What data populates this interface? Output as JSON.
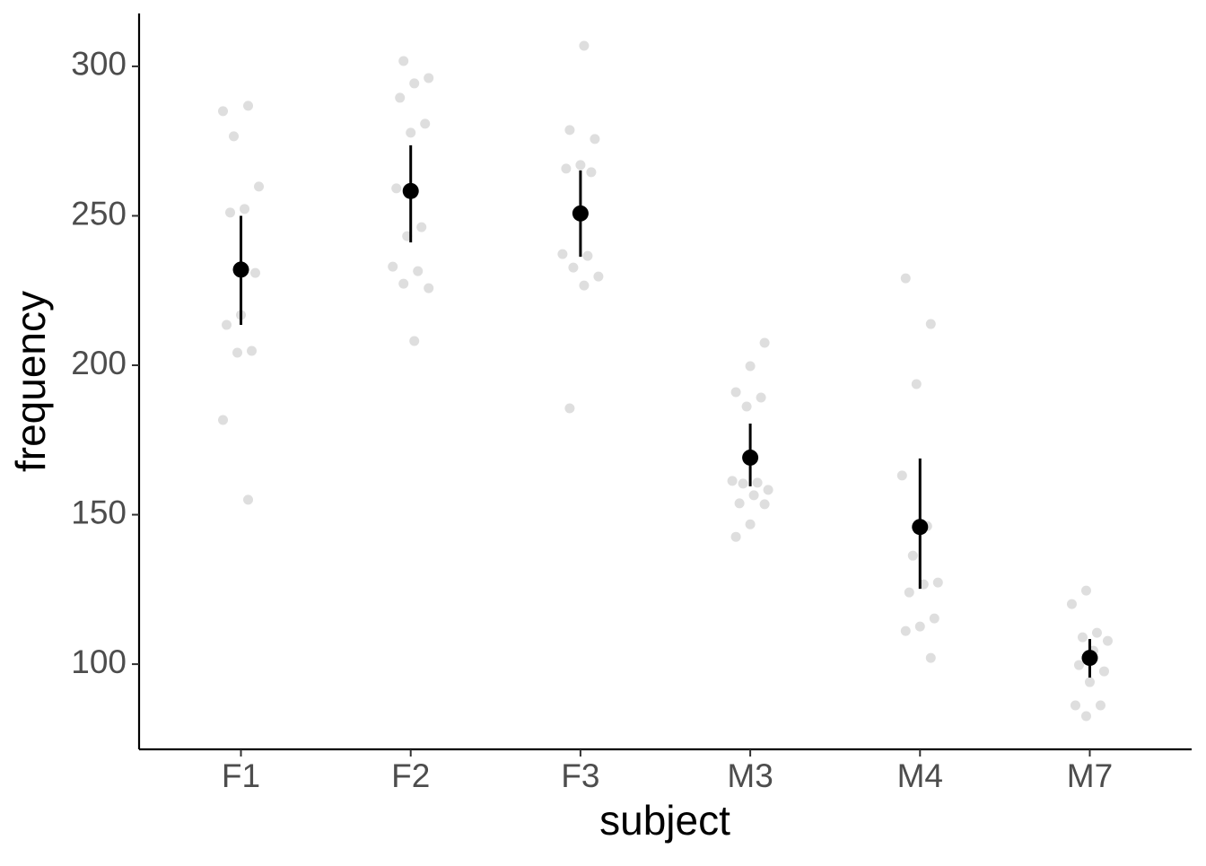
{
  "chart_data": {
    "type": "dot-errorbar",
    "x_label": "subject",
    "y_label": "frequency",
    "categories": [
      "F1",
      "F2",
      "F3",
      "M3",
      "M4",
      "M7"
    ],
    "points": [
      [
        285.0,
        286.8,
        276.6,
        259.8,
        252.3,
        251.1,
        230.9,
        216.8,
        213.5,
        204.8,
        204.2,
        181.7,
        155.0
      ],
      [
        301.8,
        296.1,
        294.3,
        289.5,
        280.8,
        277.8,
        259.2,
        246.2,
        243.2,
        233.0,
        231.5,
        227.3,
        225.8,
        208.1
      ],
      [
        306.9,
        278.7,
        275.7,
        267.0,
        265.8,
        264.6,
        251.1,
        237.2,
        236.6,
        232.7,
        229.7,
        226.7,
        185.6
      ],
      [
        207.5,
        199.7,
        191.0,
        189.2,
        186.2,
        161.3,
        160.7,
        160.4,
        158.3,
        156.5,
        153.8,
        153.5,
        146.8,
        142.6
      ],
      [
        229.1,
        213.8,
        193.7,
        163.1,
        146.2,
        136.3,
        127.3,
        126.7,
        124.0,
        115.3,
        112.6,
        111.1,
        102.1
      ],
      [
        124.6,
        120.1,
        110.5,
        109.0,
        107.8,
        104.5,
        99.7,
        97.6,
        94.0,
        86.2,
        86.2,
        82.6
      ]
    ],
    "point_color": "#bdbdbd",
    "means": [
      232.0,
      258.3,
      250.8,
      169.1,
      145.9,
      102.1
    ],
    "error_low": [
      213.5,
      241.1,
      236.3,
      159.5,
      125.2,
      95.5
    ],
    "error_high": [
      250.0,
      273.6,
      265.2,
      180.5,
      168.8,
      108.4
    ],
    "mean_color": "#000000",
    "ylim": [
      71.5,
      317.7
    ],
    "yticks": [
      100,
      150,
      200,
      250,
      300
    ]
  }
}
